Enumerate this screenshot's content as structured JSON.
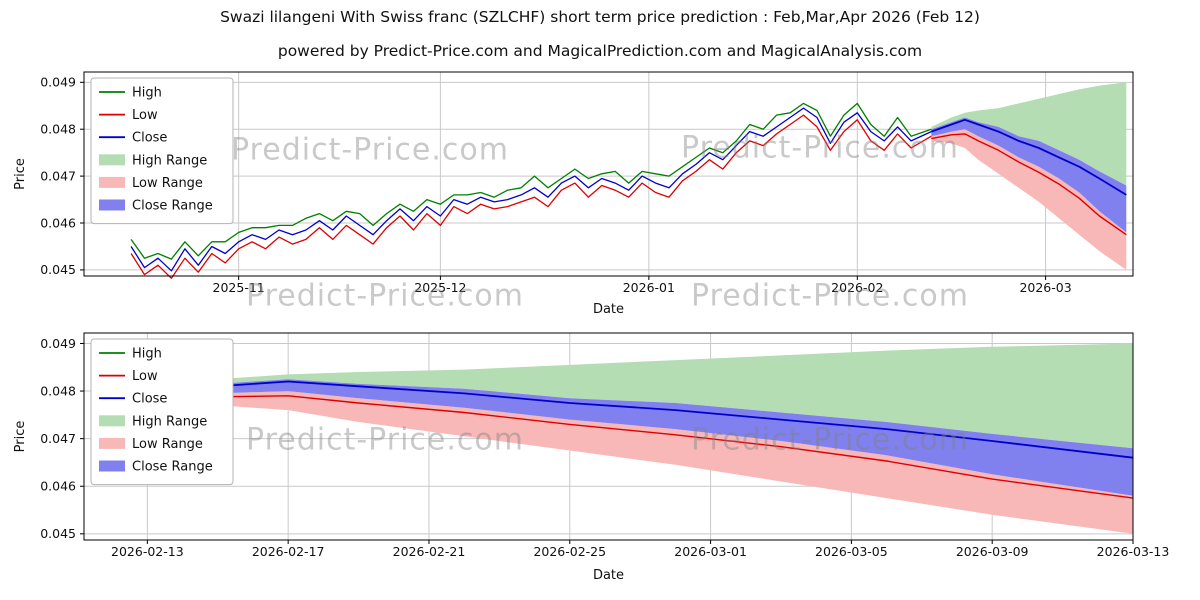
{
  "page": {
    "title": "Swazi lilangeni With Swiss franc (SZLCHF) short term price prediction : Feb,Mar,Apr 2026 (Feb 12)",
    "subtitle": "powered by Predict-Price.com and MagicalPrediction.com and MagicalAnalysis.com",
    "watermark": "Predict-Price.com"
  },
  "colors": {
    "high_line": "#008000",
    "low_line": "#dd0000",
    "close_line": "#0000cd",
    "high_range": "#b4ddb4",
    "low_range": "#f8b8b8",
    "close_range": "#8080ee",
    "grid": "#c9c9c9",
    "spine": "#000000",
    "text": "#111111"
  },
  "chart_data": [
    {
      "type": "line",
      "title": "",
      "xlabel": "Date",
      "ylabel": "Price",
      "ylim": [
        0.04487,
        0.04922
      ],
      "xlim": [
        -7,
        149
      ],
      "yticks": [
        0.045,
        0.046,
        0.047,
        0.048,
        0.049
      ],
      "ytick_labels": [
        "0.045",
        "0.046",
        "0.047",
        "0.048",
        "0.049"
      ],
      "xticks": [
        {
          "day": 16,
          "label": "2025-11"
        },
        {
          "day": 46,
          "label": "2025-12"
        },
        {
          "day": 77,
          "label": "2026-01"
        },
        {
          "day": 108,
          "label": "2026-02"
        },
        {
          "day": 136,
          "label": "2026-03"
        }
      ],
      "legend": [
        {
          "label": "High",
          "swatch": "line",
          "color": "#008000"
        },
        {
          "label": "Low",
          "swatch": "line",
          "color": "#dd0000"
        },
        {
          "label": "Close",
          "swatch": "line",
          "color": "#0000cd"
        },
        {
          "label": "High Range",
          "swatch": "patch",
          "color": "#b4ddb4"
        },
        {
          "label": "Low Range",
          "swatch": "patch",
          "color": "#f8b8b8"
        },
        {
          "label": "Close Range",
          "swatch": "patch",
          "color": "#8080ee"
        }
      ],
      "historical": {
        "days": [
          0,
          2,
          4,
          6,
          8,
          10,
          12,
          14,
          16,
          18,
          20,
          22,
          24,
          26,
          28,
          30,
          32,
          34,
          36,
          38,
          40,
          42,
          44,
          46,
          48,
          50,
          52,
          54,
          56,
          58,
          60,
          62,
          64,
          66,
          68,
          70,
          72,
          74,
          76,
          78,
          80,
          82,
          84,
          86,
          88,
          90,
          92,
          94,
          96,
          98,
          100,
          102,
          104,
          106,
          108,
          110,
          112,
          114,
          116,
          119
        ],
        "close": [
          0.0455,
          0.04505,
          0.04525,
          0.04498,
          0.04545,
          0.0451,
          0.0455,
          0.04535,
          0.0456,
          0.04575,
          0.04565,
          0.04585,
          0.04575,
          0.04585,
          0.04605,
          0.04585,
          0.04615,
          0.04595,
          0.04575,
          0.04605,
          0.0463,
          0.04605,
          0.04635,
          0.04615,
          0.0465,
          0.0464,
          0.04655,
          0.04645,
          0.0465,
          0.0466,
          0.04675,
          0.04655,
          0.04685,
          0.047,
          0.04675,
          0.04695,
          0.04685,
          0.0467,
          0.047,
          0.04685,
          0.04675,
          0.04705,
          0.04725,
          0.0475,
          0.04735,
          0.04765,
          0.04795,
          0.04785,
          0.04805,
          0.04825,
          0.04845,
          0.04825,
          0.0477,
          0.04815,
          0.04835,
          0.04795,
          0.04775,
          0.04805,
          0.04775,
          0.04795
        ],
        "high": [
          0.04565,
          0.04525,
          0.04535,
          0.04523,
          0.0456,
          0.0453,
          0.0456,
          0.0456,
          0.0458,
          0.0459,
          0.0459,
          0.04595,
          0.04595,
          0.0461,
          0.0462,
          0.04605,
          0.04625,
          0.0462,
          0.04595,
          0.0462,
          0.0464,
          0.04625,
          0.0465,
          0.0464,
          0.0466,
          0.0466,
          0.04665,
          0.04655,
          0.0467,
          0.04675,
          0.047,
          0.04675,
          0.04695,
          0.04715,
          0.04695,
          0.04705,
          0.0471,
          0.04685,
          0.0471,
          0.04705,
          0.047,
          0.0472,
          0.0474,
          0.0476,
          0.0475,
          0.04775,
          0.0481,
          0.048,
          0.0483,
          0.04835,
          0.04855,
          0.0484,
          0.04785,
          0.0483,
          0.04855,
          0.0481,
          0.04785,
          0.04825,
          0.04785,
          0.048
        ],
        "low": [
          0.04535,
          0.0449,
          0.0451,
          0.04482,
          0.04525,
          0.04495,
          0.04535,
          0.04515,
          0.04545,
          0.0456,
          0.04545,
          0.0457,
          0.04555,
          0.04565,
          0.0459,
          0.04565,
          0.04595,
          0.04575,
          0.04555,
          0.0459,
          0.04615,
          0.04585,
          0.0462,
          0.04595,
          0.04635,
          0.0462,
          0.0464,
          0.0463,
          0.04635,
          0.04645,
          0.04655,
          0.04635,
          0.0467,
          0.04685,
          0.04655,
          0.0468,
          0.0467,
          0.04655,
          0.04685,
          0.04665,
          0.04655,
          0.0469,
          0.0471,
          0.04735,
          0.04715,
          0.0475,
          0.04775,
          0.04765,
          0.0479,
          0.0481,
          0.0483,
          0.04805,
          0.04755,
          0.04795,
          0.0482,
          0.04775,
          0.04755,
          0.0479,
          0.0476,
          0.04785
        ]
      },
      "prediction": {
        "days": [
          119,
          122,
          124,
          126,
          129,
          132,
          135,
          138,
          141,
          144,
          148
        ],
        "high_upper": [
          0.04805,
          0.04825,
          0.04835,
          0.0484,
          0.04845,
          0.04855,
          0.04865,
          0.04875,
          0.04885,
          0.04893,
          0.049
        ],
        "close_upper": [
          0.048,
          0.04815,
          0.04825,
          0.04815,
          0.04805,
          0.04785,
          0.04775,
          0.04755,
          0.04735,
          0.0471,
          0.0468
        ],
        "close": [
          0.04795,
          0.0481,
          0.0482,
          0.0481,
          0.04795,
          0.04775,
          0.0476,
          0.0474,
          0.0472,
          0.04695,
          0.0466
        ],
        "close_lower": [
          0.04785,
          0.04795,
          0.048,
          0.04785,
          0.04765,
          0.0474,
          0.0472,
          0.04695,
          0.04665,
          0.04625,
          0.0458
        ],
        "low": [
          0.0478,
          0.04788,
          0.0479,
          0.04775,
          0.04755,
          0.0473,
          0.04708,
          0.04683,
          0.04653,
          0.04615,
          0.04575
        ],
        "low_lower": [
          0.04775,
          0.0477,
          0.0476,
          0.04735,
          0.04705,
          0.04675,
          0.04645,
          0.0461,
          0.04575,
          0.0454,
          0.045
        ]
      }
    },
    {
      "type": "line",
      "title": "",
      "xlabel": "Date",
      "ylabel": "Price",
      "ylim": [
        0.04487,
        0.04922
      ],
      "xlim": [
        118.2,
        148
      ],
      "yticks": [
        0.045,
        0.046,
        0.047,
        0.048,
        0.049
      ],
      "ytick_labels": [
        "0.045",
        "0.046",
        "0.047",
        "0.048",
        "0.049"
      ],
      "xticks": [
        {
          "day": 120,
          "label": "2026-02-13"
        },
        {
          "day": 124,
          "label": "2026-02-17"
        },
        {
          "day": 128,
          "label": "2026-02-21"
        },
        {
          "day": 132,
          "label": "2026-02-25"
        },
        {
          "day": 136,
          "label": "2026-03-01"
        },
        {
          "day": 140,
          "label": "2026-03-05"
        },
        {
          "day": 144,
          "label": "2026-03-09"
        },
        {
          "day": 148,
          "label": "2026-03-13"
        }
      ],
      "legend": [
        {
          "label": "High",
          "swatch": "line",
          "color": "#008000"
        },
        {
          "label": "Low",
          "swatch": "line",
          "color": "#dd0000"
        },
        {
          "label": "Close",
          "swatch": "line",
          "color": "#0000cd"
        },
        {
          "label": "High Range",
          "swatch": "patch",
          "color": "#b4ddb4"
        },
        {
          "label": "Low Range",
          "swatch": "patch",
          "color": "#f8b8b8"
        },
        {
          "label": "Close Range",
          "swatch": "patch",
          "color": "#8080ee"
        }
      ],
      "historical": null,
      "prediction": {
        "days": [
          119,
          122,
          124,
          126,
          129,
          132,
          135,
          138,
          141,
          144,
          148
        ],
        "high_upper": [
          0.04805,
          0.04825,
          0.04835,
          0.0484,
          0.04845,
          0.04855,
          0.04865,
          0.04875,
          0.04885,
          0.04893,
          0.049
        ],
        "close_upper": [
          0.048,
          0.04815,
          0.04825,
          0.04815,
          0.04805,
          0.04785,
          0.04775,
          0.04755,
          0.04735,
          0.0471,
          0.0468
        ],
        "close": [
          0.04795,
          0.0481,
          0.0482,
          0.0481,
          0.04795,
          0.04775,
          0.0476,
          0.0474,
          0.0472,
          0.04695,
          0.0466
        ],
        "close_lower": [
          0.04785,
          0.04795,
          0.048,
          0.04785,
          0.04765,
          0.0474,
          0.0472,
          0.04695,
          0.04665,
          0.04625,
          0.0458
        ],
        "low": [
          0.0478,
          0.04788,
          0.0479,
          0.04775,
          0.04755,
          0.0473,
          0.04708,
          0.04683,
          0.04653,
          0.04615,
          0.04575
        ],
        "low_lower": [
          0.04775,
          0.0477,
          0.0476,
          0.04735,
          0.04705,
          0.04675,
          0.04645,
          0.0461,
          0.04575,
          0.0454,
          0.045
        ]
      }
    }
  ]
}
